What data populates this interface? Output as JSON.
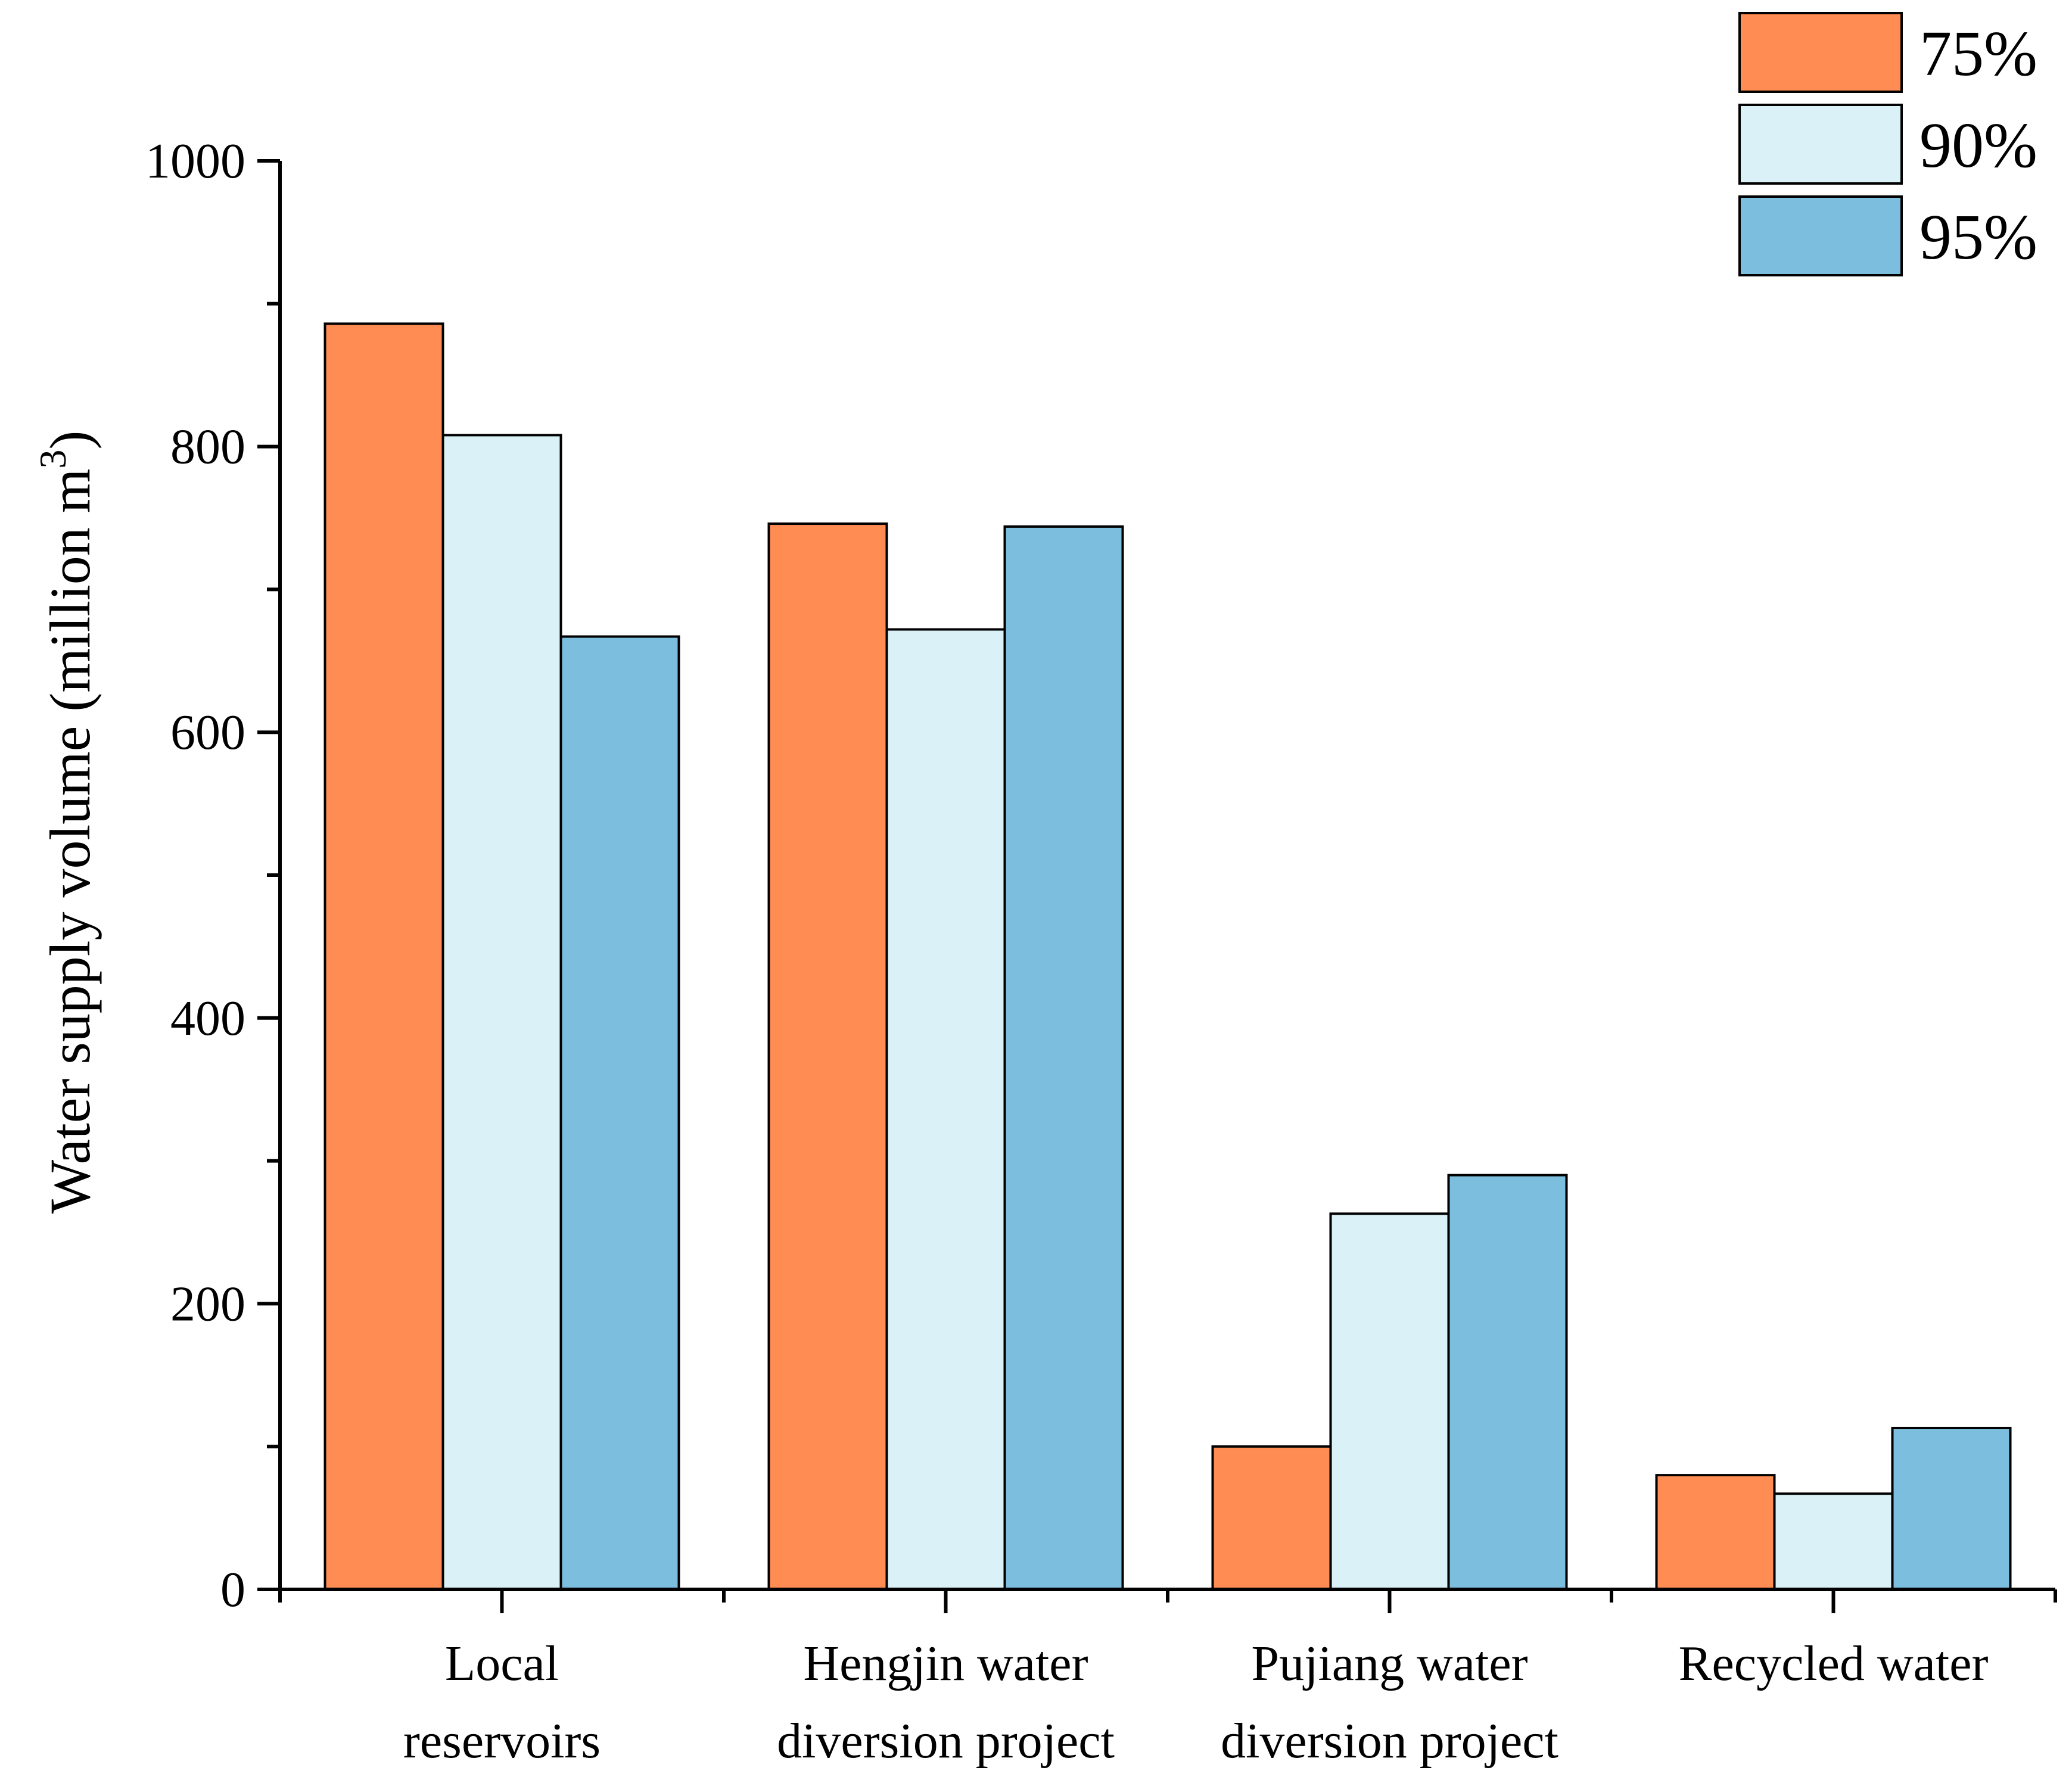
{
  "chart_data": {
    "type": "bar",
    "ylabel": "Water supply volume (million m",
    "ylabel_superscript": "3",
    "ylabel_close": ")",
    "ylim": [
      0,
      1000
    ],
    "yticks": [
      0,
      200,
      400,
      600,
      800,
      1000
    ],
    "categories": [
      [
        "Local",
        "reservoirs"
      ],
      [
        "Hengjin water",
        "diversion project"
      ],
      [
        "Pujiang water",
        "diversion project"
      ],
      [
        "Recycled water"
      ]
    ],
    "series": [
      {
        "name": "75%",
        "color": "#FF8C52",
        "values": [
          886,
          746,
          100,
          80
        ]
      },
      {
        "name": "90%",
        "color": "#DAF2F7",
        "values": [
          808,
          672,
          263,
          67
        ]
      },
      {
        "name": "95%",
        "color": "#7BBEDD",
        "values": [
          667,
          744,
          290,
          113
        ]
      }
    ],
    "legend_position": "top-right"
  }
}
